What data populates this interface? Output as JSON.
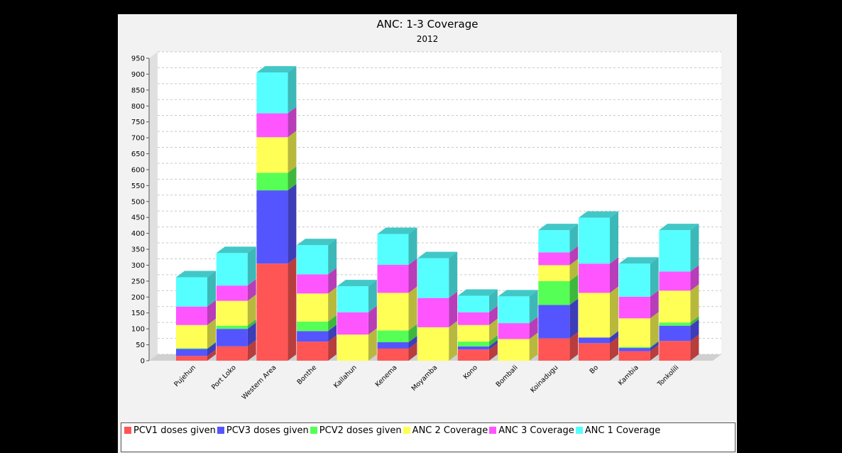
{
  "chart_data": {
    "type": "bar",
    "stacked": true,
    "three_d": true,
    "title": "ANC: 1-3 Coverage",
    "subtitle": "2012",
    "xlabel": "",
    "ylabel": "",
    "ylim": [
      0,
      950
    ],
    "yticks": [
      0,
      50,
      100,
      150,
      200,
      250,
      300,
      350,
      400,
      450,
      500,
      550,
      600,
      650,
      700,
      750,
      800,
      850,
      900,
      950
    ],
    "grid": true,
    "legend_position": "bottom",
    "categories": [
      "Pujehun",
      "Port Loko",
      "Western Area",
      "Bonthe",
      "Kailahun",
      "Kenema",
      "Moyamba",
      "Kono",
      "Bombali",
      "Koinadugu",
      "Bo",
      "Kambia",
      "Tonkolili"
    ],
    "series": [
      {
        "name": "PCV1 doses given",
        "color": "#ff5555",
        "values": [
          15,
          45,
          305,
          60,
          0,
          38,
          0,
          35,
          0,
          70,
          55,
          30,
          62
        ]
      },
      {
        "name": "PCV3 doses given",
        "color": "#5555ff",
        "values": [
          22,
          55,
          230,
          33,
          0,
          20,
          0,
          10,
          0,
          105,
          18,
          10,
          48
        ]
      },
      {
        "name": "PCV2 doses given",
        "color": "#55ff55",
        "values": [
          2,
          10,
          55,
          30,
          0,
          37,
          0,
          15,
          0,
          75,
          0,
          3,
          10
        ]
      },
      {
        "name": "ANC 2 Coverage",
        "color": "#ffff55",
        "values": [
          73,
          78,
          112,
          88,
          82,
          118,
          105,
          52,
          68,
          50,
          140,
          90,
          100
        ]
      },
      {
        "name": "ANC 3 Coverage",
        "color": "#ff55ff",
        "values": [
          58,
          48,
          75,
          60,
          70,
          88,
          92,
          40,
          50,
          40,
          92,
          68,
          60
        ]
      },
      {
        "name": "ANC 1 Coverage",
        "color": "#55ffff",
        "values": [
          92,
          102,
          128,
          92,
          82,
          97,
          125,
          52,
          84,
          70,
          144,
          104,
          130
        ]
      }
    ]
  }
}
